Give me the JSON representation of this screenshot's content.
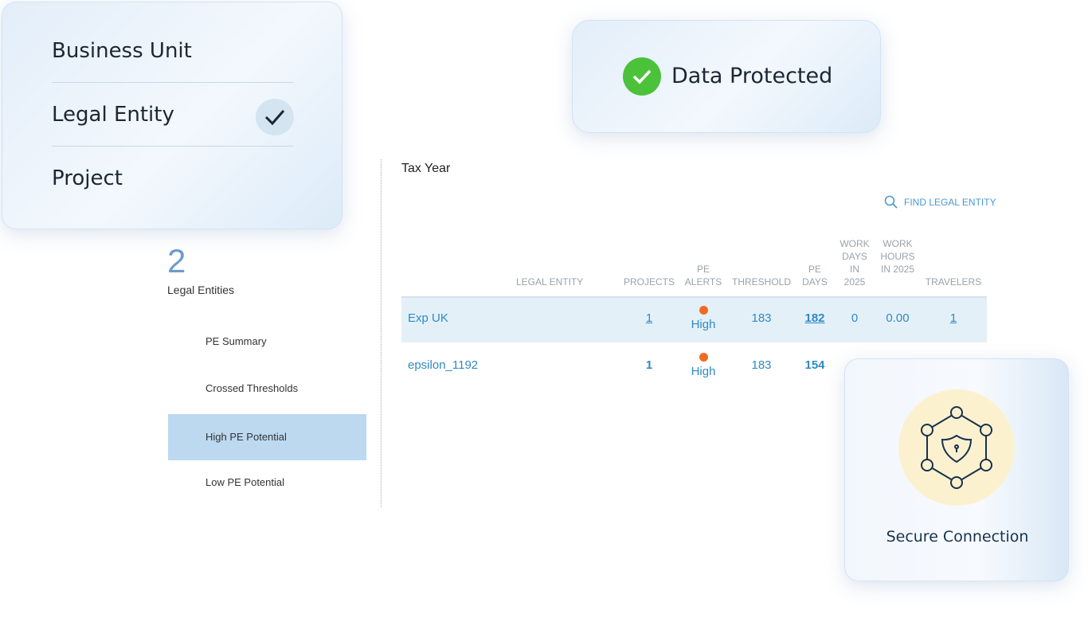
{
  "dropdown": {
    "items": [
      {
        "label": "Business Unit",
        "selected": false
      },
      {
        "label": "Legal Entity",
        "selected": true
      },
      {
        "label": "Project",
        "selected": false
      }
    ]
  },
  "badge": {
    "label": "Data Protected",
    "color": "#4cc23b"
  },
  "summary": {
    "count": "2",
    "label": "Legal Entities"
  },
  "nav": {
    "items": [
      "PE Summary",
      "Crossed Thresholds",
      "High PE Potential",
      "Low PE Potential"
    ],
    "selected": "High PE Potential"
  },
  "main": {
    "tax_year_label": "Tax Year",
    "find_label": "FIND LEGAL ENTITY"
  },
  "table": {
    "headers": [
      "LEGAL ENTITY",
      "PROJECTS",
      "PE ALERTS",
      "THRESHOLD",
      "PE DAYS",
      "WORK DAYS IN 2025",
      "WORK HOURS IN 2025",
      "TRAVELERS"
    ],
    "rows": [
      {
        "entity": "Exp UK",
        "projects": "1",
        "alert": "High",
        "threshold": "183",
        "pe_days": "182",
        "work_days": "0",
        "work_hours": "0.00",
        "travelers": "1"
      },
      {
        "entity": "epsilon_1192",
        "projects": "1",
        "alert": "High",
        "threshold": "183",
        "pe_days": "154"
      }
    ],
    "alert_color": "#f26a22",
    "link_color": "#2f8ac4"
  },
  "secure": {
    "label": "Secure Connection",
    "icon": "shield-network-icon"
  }
}
